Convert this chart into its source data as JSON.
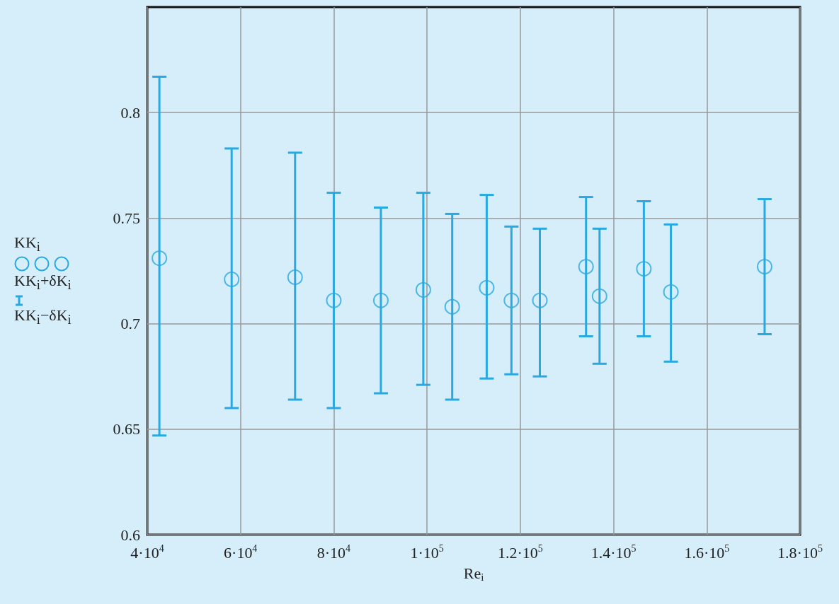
{
  "chart_data": {
    "type": "scatter",
    "xlabel": "Re$_{i}$",
    "marker": "circle",
    "grid": true,
    "legend": "left",
    "x": [
      42600,
      58100,
      71700,
      80000,
      90100,
      99200,
      105400,
      112800,
      118100,
      124200,
      134100,
      137000,
      146500,
      152300,
      172400
    ],
    "series": [
      {
        "name": "KK$_{i}$",
        "color": "#29a9e0",
        "values": [
          0.731,
          0.721,
          0.722,
          0.711,
          0.711,
          0.716,
          0.708,
          0.717,
          0.711,
          0.711,
          0.727,
          0.713,
          0.726,
          0.715,
          0.727
        ],
        "errors": [
          [
            0.647,
            0.817
          ],
          [
            0.66,
            0.783
          ],
          [
            0.664,
            0.781
          ],
          [
            0.66,
            0.762
          ],
          [
            0.667,
            0.755
          ],
          [
            0.671,
            0.762
          ],
          [
            0.664,
            0.752
          ],
          [
            0.674,
            0.761
          ],
          [
            0.676,
            0.746
          ],
          [
            0.675,
            0.745
          ],
          [
            0.694,
            0.76
          ],
          [
            0.681,
            0.745
          ],
          [
            0.694,
            0.758
          ],
          [
            0.682,
            0.747
          ],
          [
            0.695,
            0.759
          ]
        ]
      }
    ],
    "annotations": [
      "KK$_{i}$+δK$_{i}$",
      "KK$_{i}$−δK$_{i}$"
    ],
    "xlim": [
      40000,
      180000
    ],
    "ylim": [
      0.6,
      0.85
    ],
    "xticks": [
      {
        "value": 40000,
        "label": "4·10$^{4}$"
      },
      {
        "value": 60000,
        "label": "6·10$^{4}$"
      },
      {
        "value": 80000,
        "label": "8·10$^{4}$"
      },
      {
        "value": 100000,
        "label": "1·10$^{5}$"
      },
      {
        "value": 120000,
        "label": "1.2·10$^{5}$"
      },
      {
        "value": 140000,
        "label": "1.4·10$^{5}$"
      },
      {
        "value": 160000,
        "label": "1.6·10$^{5}$"
      },
      {
        "value": 180000,
        "label": "1.8·10$^{5}$"
      }
    ],
    "yticks": [
      0.6,
      0.65,
      0.7,
      0.75,
      0.8
    ]
  }
}
